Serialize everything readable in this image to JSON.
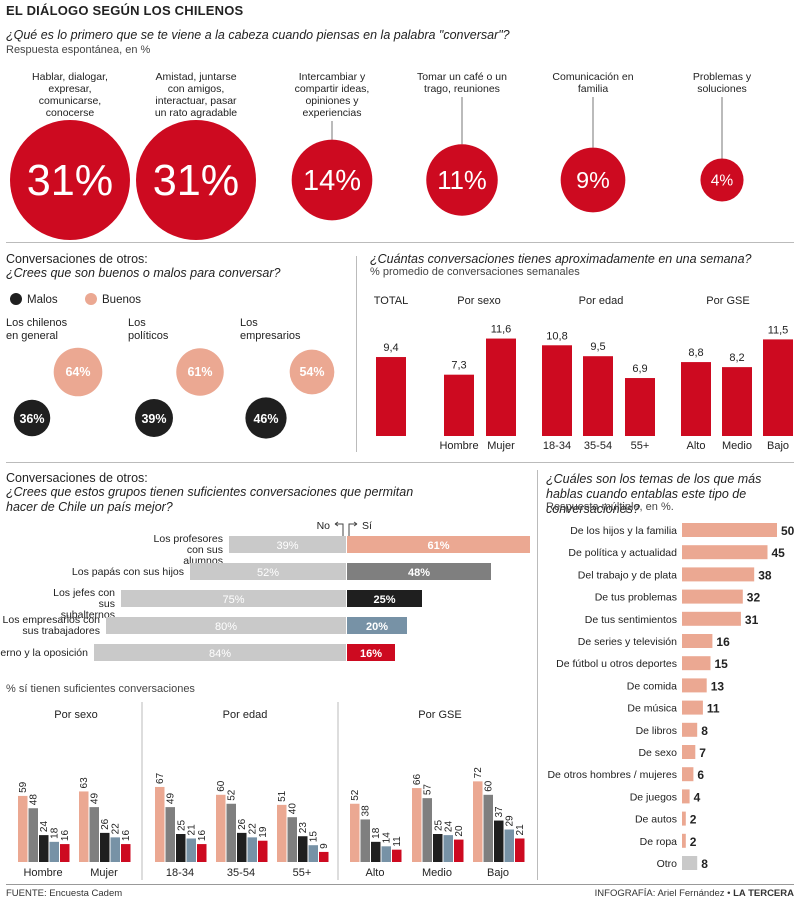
{
  "title": "EL DIÁLOGO SEGÚN LOS CHILENOS",
  "footer": {
    "source": "FUENTE: Encuesta Cadem",
    "credit": "INFOGRAFÍA: Ariel Fernández",
    "brand": "LA TERCERA"
  },
  "colors": {
    "red": "#cd0a20",
    "salmon": "#eba892",
    "black": "#1f1f1f",
    "lightgray": "#c9c9c9",
    "darkgray": "#7f7f7f",
    "steel": "#7792a6"
  },
  "chart_data": [
    {
      "id": "conversar",
      "type": "bubble",
      "title": "¿Qué es lo primero que se te viene a la cabeza cuando piensas en la palabra \"conversar\"?",
      "subtitle": "Respuesta espontánea, en %",
      "items": [
        {
          "label": "Hablar, dialogar, expresar, comunicarse, conocerse",
          "value": 31,
          "display": "31%"
        },
        {
          "label": "Amistad, juntarse con amigos, interactuar, pasar un rato agradable",
          "value": 31,
          "display": "31%"
        },
        {
          "label": "Intercambiar y compartir ideas, opiniones y experiencias",
          "value": 14,
          "display": "14%"
        },
        {
          "label": "Tomar un café o un trago, reuniones",
          "value": 11,
          "display": "11%"
        },
        {
          "label": "Comunicación en familia",
          "value": 9,
          "display": "9%"
        },
        {
          "label": "Problemas y soluciones",
          "value": 4,
          "display": "4%"
        }
      ]
    },
    {
      "id": "buenos_malos",
      "type": "bubble-pair",
      "title1": "Conversaciones de otros:",
      "title2": "¿Crees que son buenos o malos para conversar?",
      "legend": [
        "Malos",
        "Buenos"
      ],
      "groups": [
        {
          "label": "Los chilenos en general",
          "malos": 36,
          "buenos": 64,
          "malos_display": "36%",
          "buenos_display": "64%"
        },
        {
          "label": "Los políticos",
          "malos": 39,
          "buenos": 61,
          "malos_display": "39%",
          "buenos_display": "61%"
        },
        {
          "label": "Los empresarios",
          "malos": 46,
          "buenos": 54,
          "malos_display": "46%",
          "buenos_display": "54%"
        }
      ]
    },
    {
      "id": "semana",
      "type": "bar",
      "title": "¿Cuántas conversaciones tienes aproximadamente en una semana?",
      "subtitle": "% promedio de conversaciones semanales",
      "groups": [
        {
          "name": "TOTAL",
          "categories": [
            ""
          ],
          "values": [
            9.4
          ],
          "displays": [
            "9,4"
          ]
        },
        {
          "name": "Por sexo",
          "categories": [
            "Hombre",
            "Mujer"
          ],
          "values": [
            7.3,
            11.6
          ],
          "displays": [
            "7,3",
            "11,6"
          ]
        },
        {
          "name": "Por edad",
          "categories": [
            "18-34",
            "35-54",
            "55+"
          ],
          "values": [
            10.8,
            9.5,
            6.9
          ],
          "displays": [
            "10,8",
            "9,5",
            "6,9"
          ]
        },
        {
          "name": "Por GSE",
          "categories": [
            "Alto",
            "Medio",
            "Bajo"
          ],
          "values": [
            8.8,
            8.2,
            11.5
          ],
          "displays": [
            "8,8",
            "8,2",
            "11,5"
          ]
        }
      ]
    },
    {
      "id": "suficientes",
      "type": "diverging-bar",
      "title1": "Conversaciones de otros:",
      "title2": "¿Crees que estos grupos tienen suficientes conversaciones que permitan hacer de Chile un país mejor?",
      "no_label": "No",
      "si_label": "Sí",
      "rows": [
        {
          "label": "Los profesores con sus alumnos",
          "no": 39,
          "si": 61,
          "no_display": "39%",
          "si_display": "61%",
          "si_color": "#eba892"
        },
        {
          "label": "Los papás con sus hijos",
          "no": 52,
          "si": 48,
          "no_display": "52%",
          "si_display": "48%",
          "si_color": "#7f7f7f"
        },
        {
          "label": "Los jefes con sus subalternos",
          "no": 75,
          "si": 25,
          "no_display": "75%",
          "si_display": "25%",
          "si_color": "#1f1f1f"
        },
        {
          "label": "Los empresarios con sus trabajadores",
          "no": 80,
          "si": 20,
          "no_display": "80%",
          "si_display": "20%",
          "si_color": "#7792a6"
        },
        {
          "label": "El gobierno y la oposición",
          "no": 84,
          "si": 16,
          "no_display": "84%",
          "si_display": "16%",
          "si_color": "#cd0a20"
        }
      ]
    },
    {
      "id": "sitienen",
      "type": "bar",
      "subtitle": "% sí tienen suficientes conversaciones",
      "series_colors": [
        "#eba892",
        "#7f7f7f",
        "#1f1f1f",
        "#7792a6",
        "#cd0a20"
      ],
      "groups": [
        {
          "name": "Por sexo",
          "categories": [
            {
              "label": "Hombre",
              "values": [
                59,
                48,
                24,
                18,
                16
              ]
            },
            {
              "label": "Mujer",
              "values": [
                63,
                49,
                26,
                22,
                16
              ]
            }
          ]
        },
        {
          "name": "Por edad",
          "categories": [
            {
              "label": "18-34",
              "values": [
                67,
                49,
                25,
                21,
                16
              ]
            },
            {
              "label": "35-54",
              "values": [
                60,
                52,
                26,
                22,
                19
              ]
            },
            {
              "label": "55+",
              "values": [
                51,
                40,
                23,
                15,
                9
              ]
            }
          ]
        },
        {
          "name": "Por GSE",
          "categories": [
            {
              "label": "Alto",
              "values": [
                52,
                38,
                18,
                14,
                11
              ]
            },
            {
              "label": "Medio",
              "values": [
                66,
                57,
                25,
                24,
                20
              ]
            },
            {
              "label": "Bajo",
              "values": [
                72,
                60,
                37,
                29,
                21
              ]
            }
          ]
        }
      ]
    },
    {
      "id": "temas",
      "type": "bar",
      "orientation": "horizontal",
      "title": "¿Cuáles son los temas de los que más hablas cuando entablas este tipo de conversaciones?",
      "subtitle": "Respuesta múltiple, en %.",
      "categories": [
        "De los hijos y la familia",
        "De política y actualidad",
        "Del trabajo y de plata",
        "De tus problemas",
        "De tus sentimientos",
        "De series y televisión",
        "De fútbol u otros deportes",
        "De comida",
        "De música",
        "De libros",
        "De sexo",
        "De otros hombres / mujeres",
        "De juegos",
        "De autos",
        "De ropa",
        "Otro"
      ],
      "values": [
        50,
        45,
        38,
        32,
        31,
        16,
        15,
        13,
        11,
        8,
        7,
        6,
        4,
        2,
        2,
        8
      ]
    }
  ]
}
